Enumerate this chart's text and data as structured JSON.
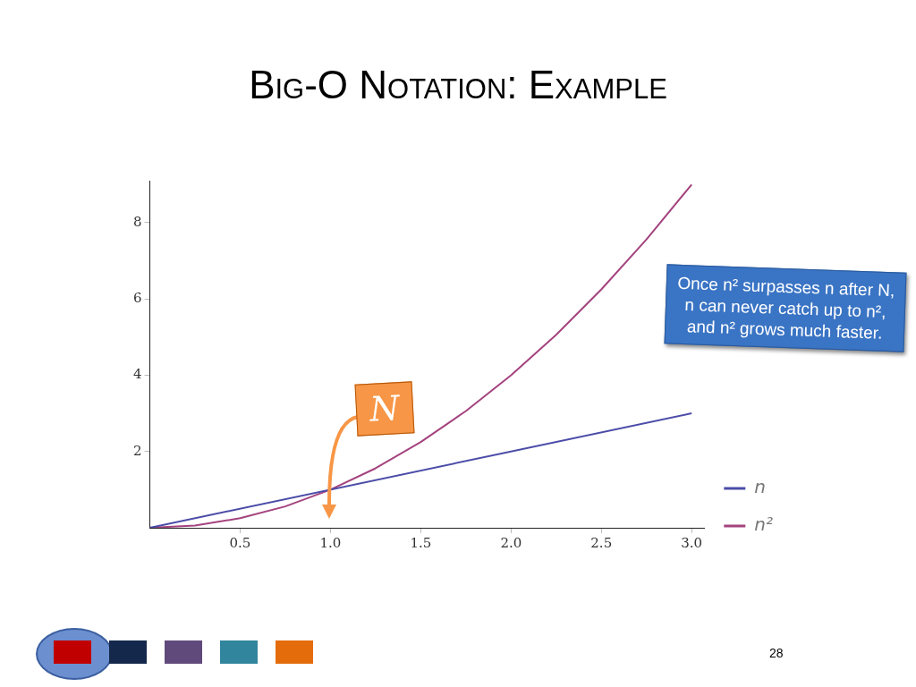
{
  "chart_data": {
    "type": "line",
    "title": "Big-O Notation: Example",
    "xlim": [
      0,
      3.07
    ],
    "xticks": [
      0.5,
      {
        "value": 1,
        "label": "1.0"
      },
      1.5,
      {
        "value": 2,
        "label": "2.0"
      },
      2.5,
      {
        "value": 3,
        "label": "3.0"
      }
    ],
    "ylim": [
      0,
      9.1
    ],
    "yticks": [
      2,
      4,
      6,
      8
    ],
    "series": [
      {
        "name": "n",
        "color": "#4b4ca8",
        "x": [
          0,
          3
        ],
        "values": [
          0,
          3
        ]
      },
      {
        "name": "n²",
        "color": "#a4437e",
        "x": [
          0,
          0.25,
          0.5,
          0.75,
          1,
          1.25,
          1.5,
          1.75,
          2,
          2.25,
          2.5,
          2.75,
          3
        ],
        "values": [
          0,
          0.06,
          0.25,
          0.56,
          1,
          1.56,
          2.25,
          3.06,
          4,
          5.06,
          6.25,
          7.56,
          9
        ]
      }
    ],
    "legend": "bottom right",
    "grid": false,
    "marker": "none",
    "annotations": [
      "N",
      "Once n² surpasses n after N, n can never catch up to n², and n² grows much faster.",
      "28"
    ]
  }
}
